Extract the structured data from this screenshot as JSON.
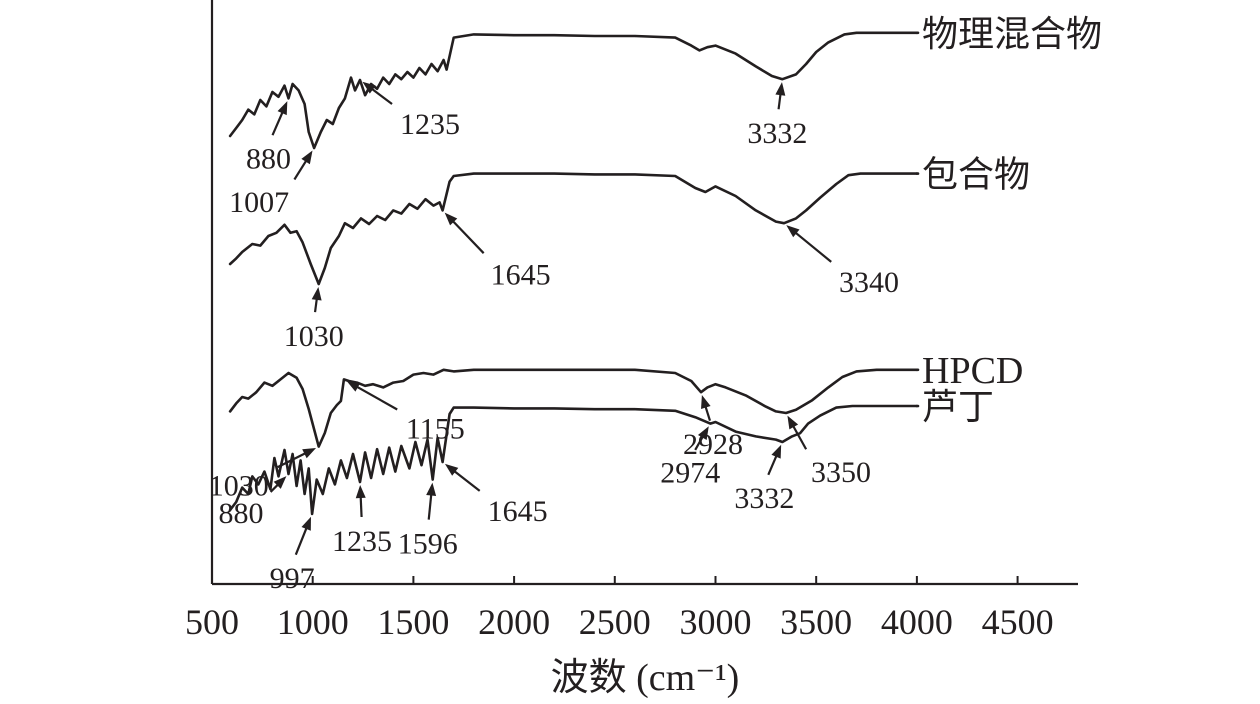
{
  "chart_data": {
    "type": "line",
    "title": "",
    "xlabel": "波数 (cm⁻¹)",
    "ylabel": "",
    "xlim": [
      500,
      4800
    ],
    "x_ticks": [
      500,
      1000,
      1500,
      2000,
      2500,
      3000,
      3500,
      4000,
      4500
    ],
    "tick_labels": [
      "500",
      "1000",
      "1500",
      "2000",
      "2500",
      "3000",
      "3500",
      "4000",
      "4500"
    ],
    "grid": false,
    "legend": "none",
    "series": [
      {
        "name": "物理混合物",
        "points": [
          [
            590,
            0.15
          ],
          [
            620,
            0.25
          ],
          [
            650,
            0.35
          ],
          [
            680,
            0.48
          ],
          [
            710,
            0.42
          ],
          [
            740,
            0.6
          ],
          [
            770,
            0.52
          ],
          [
            800,
            0.7
          ],
          [
            830,
            0.64
          ],
          [
            860,
            0.78
          ],
          [
            880,
            0.62
          ],
          [
            900,
            0.8
          ],
          [
            930,
            0.72
          ],
          [
            960,
            0.55
          ],
          [
            980,
            0.2
          ],
          [
            1007,
            0.0
          ],
          [
            1040,
            0.2
          ],
          [
            1070,
            0.35
          ],
          [
            1100,
            0.3
          ],
          [
            1130,
            0.5
          ],
          [
            1160,
            0.62
          ],
          [
            1190,
            0.88
          ],
          [
            1210,
            0.72
          ],
          [
            1235,
            0.85
          ],
          [
            1260,
            0.66
          ],
          [
            1290,
            0.8
          ],
          [
            1320,
            0.74
          ],
          [
            1350,
            0.88
          ],
          [
            1380,
            0.8
          ],
          [
            1410,
            0.92
          ],
          [
            1440,
            0.86
          ],
          [
            1470,
            0.95
          ],
          [
            1500,
            0.88
          ],
          [
            1530,
            1.0
          ],
          [
            1560,
            0.92
          ],
          [
            1590,
            1.05
          ],
          [
            1620,
            0.96
          ],
          [
            1650,
            1.1
          ],
          [
            1665,
            0.98
          ],
          [
            1700,
            1.38
          ],
          [
            1800,
            1.42
          ],
          [
            2000,
            1.41
          ],
          [
            2200,
            1.41
          ],
          [
            2400,
            1.4
          ],
          [
            2600,
            1.4
          ],
          [
            2800,
            1.38
          ],
          [
            2880,
            1.28
          ],
          [
            2920,
            1.22
          ],
          [
            2960,
            1.26
          ],
          [
            3000,
            1.28
          ],
          [
            3100,
            1.18
          ],
          [
            3200,
            1.02
          ],
          [
            3280,
            0.9
          ],
          [
            3332,
            0.86
          ],
          [
            3400,
            0.92
          ],
          [
            3450,
            1.05
          ],
          [
            3500,
            1.2
          ],
          [
            3560,
            1.32
          ],
          [
            3640,
            1.42
          ],
          [
            3700,
            1.44
          ],
          [
            3800,
            1.44
          ],
          [
            3900,
            1.44
          ],
          [
            4000,
            1.44
          ]
        ]
      },
      {
        "name": "包合物",
        "points": [
          [
            590,
            0.05
          ],
          [
            620,
            0.12
          ],
          [
            650,
            0.2
          ],
          [
            700,
            0.3
          ],
          [
            740,
            0.28
          ],
          [
            780,
            0.4
          ],
          [
            820,
            0.44
          ],
          [
            860,
            0.54
          ],
          [
            890,
            0.44
          ],
          [
            920,
            0.46
          ],
          [
            950,
            0.32
          ],
          [
            990,
            0.05
          ],
          [
            1030,
            -0.2
          ],
          [
            1060,
            0.0
          ],
          [
            1090,
            0.25
          ],
          [
            1130,
            0.4
          ],
          [
            1160,
            0.56
          ],
          [
            1200,
            0.5
          ],
          [
            1240,
            0.62
          ],
          [
            1280,
            0.55
          ],
          [
            1320,
            0.65
          ],
          [
            1360,
            0.6
          ],
          [
            1400,
            0.72
          ],
          [
            1440,
            0.68
          ],
          [
            1480,
            0.8
          ],
          [
            1520,
            0.74
          ],
          [
            1560,
            0.86
          ],
          [
            1600,
            0.78
          ],
          [
            1630,
            0.82
          ],
          [
            1645,
            0.72
          ],
          [
            1680,
            1.08
          ],
          [
            1700,
            1.15
          ],
          [
            1800,
            1.18
          ],
          [
            2000,
            1.18
          ],
          [
            2200,
            1.18
          ],
          [
            2400,
            1.17
          ],
          [
            2600,
            1.17
          ],
          [
            2800,
            1.15
          ],
          [
            2900,
            1.0
          ],
          [
            2950,
            0.95
          ],
          [
            3000,
            1.02
          ],
          [
            3100,
            0.9
          ],
          [
            3200,
            0.72
          ],
          [
            3300,
            0.58
          ],
          [
            3340,
            0.56
          ],
          [
            3400,
            0.62
          ],
          [
            3450,
            0.72
          ],
          [
            3520,
            0.88
          ],
          [
            3600,
            1.05
          ],
          [
            3660,
            1.16
          ],
          [
            3720,
            1.18
          ],
          [
            3800,
            1.18
          ],
          [
            4000,
            1.18
          ]
        ]
      },
      {
        "name": "HPCD",
        "points": [
          [
            590,
            0.02
          ],
          [
            620,
            0.12
          ],
          [
            650,
            0.2
          ],
          [
            680,
            0.18
          ],
          [
            720,
            0.26
          ],
          [
            760,
            0.38
          ],
          [
            800,
            0.34
          ],
          [
            840,
            0.42
          ],
          [
            880,
            0.5
          ],
          [
            920,
            0.44
          ],
          [
            950,
            0.3
          ],
          [
            980,
            0.05
          ],
          [
            1030,
            -0.42
          ],
          [
            1060,
            -0.25
          ],
          [
            1090,
            0.0
          ],
          [
            1120,
            0.1
          ],
          [
            1140,
            0.15
          ],
          [
            1155,
            0.42
          ],
          [
            1180,
            0.4
          ],
          [
            1220,
            0.38
          ],
          [
            1260,
            0.34
          ],
          [
            1300,
            0.36
          ],
          [
            1350,
            0.32
          ],
          [
            1400,
            0.38
          ],
          [
            1450,
            0.4
          ],
          [
            1500,
            0.48
          ],
          [
            1550,
            0.5
          ],
          [
            1600,
            0.48
          ],
          [
            1650,
            0.54
          ],
          [
            1700,
            0.52
          ],
          [
            1800,
            0.54
          ],
          [
            2000,
            0.54
          ],
          [
            2200,
            0.54
          ],
          [
            2400,
            0.54
          ],
          [
            2600,
            0.54
          ],
          [
            2800,
            0.5
          ],
          [
            2880,
            0.4
          ],
          [
            2928,
            0.26
          ],
          [
            2960,
            0.32
          ],
          [
            3000,
            0.36
          ],
          [
            3050,
            0.32
          ],
          [
            3150,
            0.22
          ],
          [
            3250,
            0.08
          ],
          [
            3300,
            0.02
          ],
          [
            3350,
            0.0
          ],
          [
            3400,
            0.04
          ],
          [
            3480,
            0.16
          ],
          [
            3560,
            0.32
          ],
          [
            3630,
            0.45
          ],
          [
            3700,
            0.52
          ],
          [
            3800,
            0.54
          ],
          [
            4000,
            0.54
          ]
        ]
      },
      {
        "name": "芦丁",
        "points": [
          [
            590,
            0.1
          ],
          [
            620,
            0.2
          ],
          [
            650,
            0.38
          ],
          [
            680,
            0.3
          ],
          [
            700,
            0.52
          ],
          [
            730,
            0.42
          ],
          [
            760,
            0.58
          ],
          [
            790,
            0.36
          ],
          [
            810,
            0.75
          ],
          [
            830,
            0.52
          ],
          [
            860,
            0.85
          ],
          [
            880,
            0.55
          ],
          [
            900,
            0.8
          ],
          [
            920,
            0.4
          ],
          [
            940,
            0.72
          ],
          [
            960,
            0.3
          ],
          [
            980,
            0.62
          ],
          [
            997,
            0.05
          ],
          [
            1020,
            0.48
          ],
          [
            1050,
            0.3
          ],
          [
            1080,
            0.62
          ],
          [
            1110,
            0.42
          ],
          [
            1140,
            0.72
          ],
          [
            1170,
            0.5
          ],
          [
            1200,
            0.8
          ],
          [
            1235,
            0.45
          ],
          [
            1260,
            0.82
          ],
          [
            1290,
            0.5
          ],
          [
            1320,
            0.86
          ],
          [
            1350,
            0.55
          ],
          [
            1380,
            0.88
          ],
          [
            1410,
            0.58
          ],
          [
            1440,
            0.9
          ],
          [
            1480,
            0.62
          ],
          [
            1510,
            0.95
          ],
          [
            1540,
            0.66
          ],
          [
            1570,
            0.98
          ],
          [
            1596,
            0.48
          ],
          [
            1620,
            1.0
          ],
          [
            1645,
            0.7
          ],
          [
            1680,
            1.3
          ],
          [
            1700,
            1.38
          ],
          [
            1800,
            1.38
          ],
          [
            2000,
            1.37
          ],
          [
            2200,
            1.37
          ],
          [
            2400,
            1.36
          ],
          [
            2600,
            1.36
          ],
          [
            2800,
            1.34
          ],
          [
            2900,
            1.26
          ],
          [
            2974,
            1.18
          ],
          [
            3000,
            1.2
          ],
          [
            3100,
            1.08
          ],
          [
            3200,
            1.02
          ],
          [
            3300,
            0.98
          ],
          [
            3332,
            0.95
          ],
          [
            3380,
            1.02
          ],
          [
            3420,
            1.06
          ],
          [
            3460,
            1.18
          ],
          [
            3520,
            1.28
          ],
          [
            3600,
            1.38
          ],
          [
            3680,
            1.4
          ],
          [
            3800,
            1.4
          ],
          [
            4000,
            1.4
          ]
        ]
      }
    ],
    "annotations": [
      {
        "series": 0,
        "text": "880",
        "at": 880
      },
      {
        "series": 0,
        "text": "1007",
        "at": 1007
      },
      {
        "series": 0,
        "text": "1235",
        "at": 1235
      },
      {
        "series": 0,
        "text": "3332",
        "at": 3332
      },
      {
        "series": 1,
        "text": "1645",
        "at": 1645
      },
      {
        "series": 1,
        "text": "1030",
        "at": 1030
      },
      {
        "series": 1,
        "text": "3340",
        "at": 3340
      },
      {
        "series": 2,
        "text": "1030",
        "at": 1030
      },
      {
        "series": 2,
        "text": "1155",
        "at": 1155
      },
      {
        "series": 2,
        "text": "2928",
        "at": 2928
      },
      {
        "series": 2,
        "text": "3350",
        "at": 3350
      },
      {
        "series": 3,
        "text": "880",
        "at": 880
      },
      {
        "series": 3,
        "text": "997",
        "at": 997
      },
      {
        "series": 3,
        "text": "1235",
        "at": 1235
      },
      {
        "series": 3,
        "text": "1596",
        "at": 1596
      },
      {
        "series": 3,
        "text": "1645",
        "at": 1645
      },
      {
        "series": 3,
        "text": "2974",
        "at": 2974
      },
      {
        "series": 3,
        "text": "3332",
        "at": 3332
      }
    ]
  }
}
